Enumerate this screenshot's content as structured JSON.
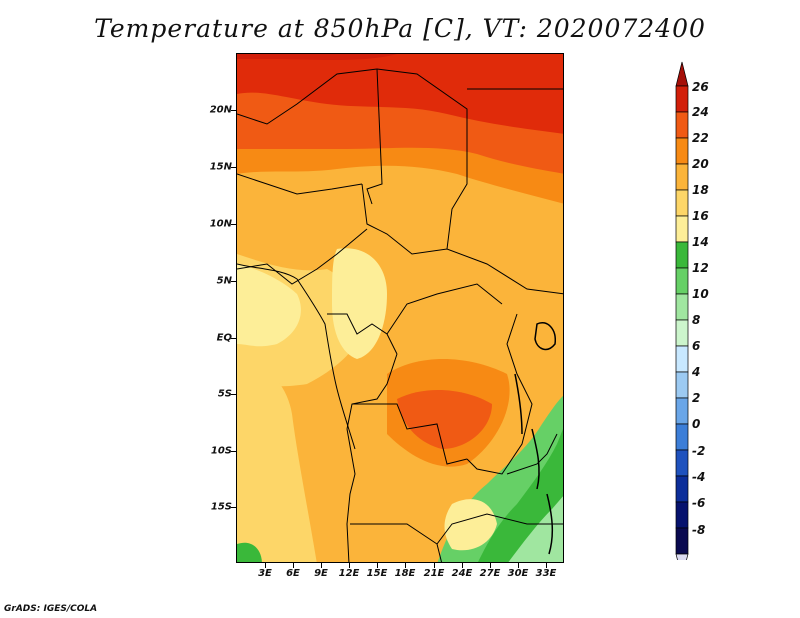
{
  "title": "Temperature at 850hPa [C], VT: 2020072400",
  "credit": "GrADS: IGES/COLA",
  "map": {
    "latitude_labels": [
      "20N",
      "15N",
      "10N",
      "5N",
      "EQ",
      "5S",
      "10S",
      "15S"
    ],
    "longitude_labels": [
      "3E",
      "6E",
      "9E",
      "12E",
      "15E",
      "18E",
      "21E",
      "24E",
      "27E",
      "30E",
      "33E"
    ]
  },
  "colorbar": {
    "labels": [
      "26",
      "24",
      "22",
      "20",
      "18",
      "16",
      "14",
      "12",
      "10",
      "8",
      "6",
      "4",
      "2",
      "0",
      "-2",
      "-4",
      "-6",
      "-8"
    ],
    "colors": [
      "#a50f08",
      "#d21f0a",
      "#f05a14",
      "#f78a14",
      "#fbb43a",
      "#fdd668",
      "#fdee98",
      "#3ab83a",
      "#66d066",
      "#a0e6a0",
      "#ccf5cc",
      "#c8e8ff",
      "#9ccaf2",
      "#6aa6e8",
      "#3c7ed8",
      "#1f52be",
      "#0c2e9a",
      "#06126e",
      "#0a0a50",
      "#dcdcf2"
    ]
  }
}
